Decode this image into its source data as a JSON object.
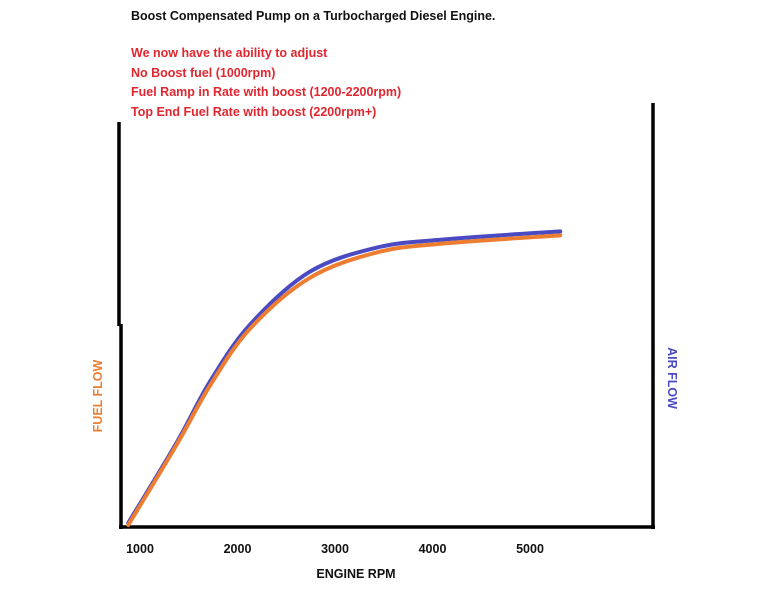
{
  "chart_data": {
    "type": "line",
    "title": "Boost Compensated Pump on a Turbocharged Diesel Engine.",
    "annotations": [
      "We now have the ability to adjust",
      "No Boost fuel (1000rpm)",
      "Fuel Ramp in Rate with boost (1200-2200rpm)",
      "Top End Fuel Rate with boost (2200rpm+)"
    ],
    "xlabel": "ENGINE RPM",
    "ylabel_left": "FUEL FLOW",
    "ylabel_right": "AIR FLOW",
    "x_ticks": [
      "1000",
      "2000",
      "3000",
      "4000",
      "5000"
    ],
    "x_tick_values": [
      1000,
      2000,
      3000,
      4000,
      5000
    ],
    "xlim": [
      800,
      6300
    ],
    "ylim": [
      0,
      100
    ],
    "y_ticks": [],
    "grid": false,
    "legend": "none",
    "series": [
      {
        "name": "AIR FLOW",
        "color": "#4a4ac2",
        "points": [
          [
            880,
            1
          ],
          [
            1380,
            21
          ],
          [
            1720,
            36
          ],
          [
            2130,
            50
          ],
          [
            2740,
            63
          ],
          [
            3430,
            69
          ],
          [
            4110,
            71
          ],
          [
            5310,
            73
          ]
        ]
      },
      {
        "name": "FUEL FLOW",
        "color": "#ed7d31",
        "points": [
          [
            880,
            0.5
          ],
          [
            1380,
            20.5
          ],
          [
            1720,
            35
          ],
          [
            2130,
            49
          ],
          [
            2740,
            61.5
          ],
          [
            3430,
            67.8
          ],
          [
            4110,
            70
          ],
          [
            5310,
            72
          ]
        ]
      }
    ],
    "colors": {
      "title": "#111111",
      "annotation": "#e0262f",
      "axis": "#000000"
    }
  }
}
